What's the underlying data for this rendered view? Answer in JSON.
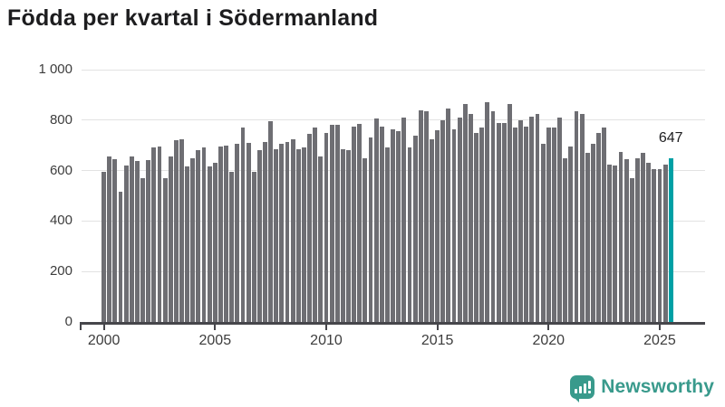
{
  "title": "Födda per kvartal i Södermanland",
  "chart_data": {
    "type": "bar",
    "title": "Födda per kvartal i Södermanland",
    "period": "2000 Q1 – 2025 Q3",
    "values": [
      595,
      655,
      645,
      515,
      620,
      655,
      637,
      570,
      640,
      690,
      695,
      570,
      655,
      720,
      725,
      615,
      650,
      680,
      690,
      615,
      630,
      695,
      700,
      595,
      705,
      770,
      710,
      595,
      680,
      715,
      795,
      685,
      705,
      715,
      725,
      685,
      690,
      745,
      770,
      655,
      750,
      780,
      780,
      685,
      680,
      775,
      785,
      650,
      730,
      805,
      775,
      690,
      765,
      755,
      810,
      690,
      740,
      840,
      835,
      725,
      760,
      800,
      845,
      765,
      810,
      865,
      825,
      750,
      770,
      870,
      835,
      790,
      790,
      865,
      770,
      800,
      775,
      815,
      825,
      705,
      770,
      770,
      810,
      650,
      695,
      835,
      825,
      670,
      705,
      750,
      770,
      625,
      620,
      675,
      645,
      570,
      650,
      670,
      630,
      605,
      605,
      625,
      647
    ],
    "quarters_per_year": 4,
    "start_year": 2000,
    "ylim": [
      0,
      1000
    ],
    "ytick_labels": [
      "0",
      "200",
      "400",
      "600",
      "800",
      "1 000"
    ],
    "ytick_values": [
      0,
      200,
      400,
      600,
      800,
      1000
    ],
    "xtick_labels": [
      "2000",
      "2005",
      "2010",
      "2015",
      "2020",
      "2025"
    ],
    "xtick_years": [
      2000,
      2005,
      2010,
      2015,
      2020,
      2025
    ],
    "grid": true,
    "legend_position": "none",
    "bar_color": "#6e6e73",
    "highlight_color": "#00a0a5",
    "highlight_index": 102,
    "annotation": {
      "text": "647",
      "index": 102
    }
  },
  "footer": {
    "brand": "Newsworthy",
    "brand_color": "#399a8c",
    "logo_icon": "bar-chart-exclamation-bubble-icon"
  }
}
